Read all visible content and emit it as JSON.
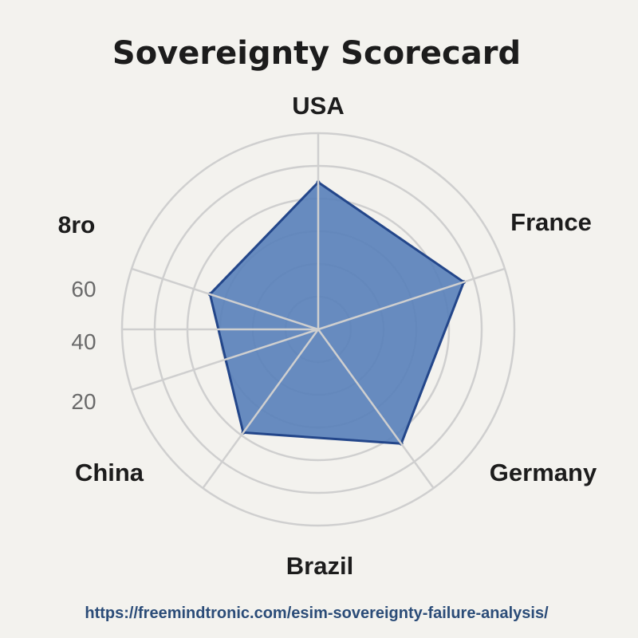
{
  "colors": {
    "fill": "#5b82bb",
    "stroke": "#23468a",
    "grid": "#cfcfcf",
    "background": "#f3f2ee"
  },
  "chart_data": {
    "type": "radar",
    "title": "Sovereignty Scorecard",
    "axes": [
      "USA",
      "France",
      "Germany",
      "Brazil",
      "China"
    ],
    "series": [
      {
        "values": [
          75,
          78,
          72,
          65,
          58
        ]
      }
    ],
    "tick_labels": [
      "20",
      "40",
      "60",
      "8ro"
    ],
    "grid": true,
    "rings": 6
  },
  "source_url": "https://freemindtronic.com/esim-sovereignty-failure-analysis/"
}
